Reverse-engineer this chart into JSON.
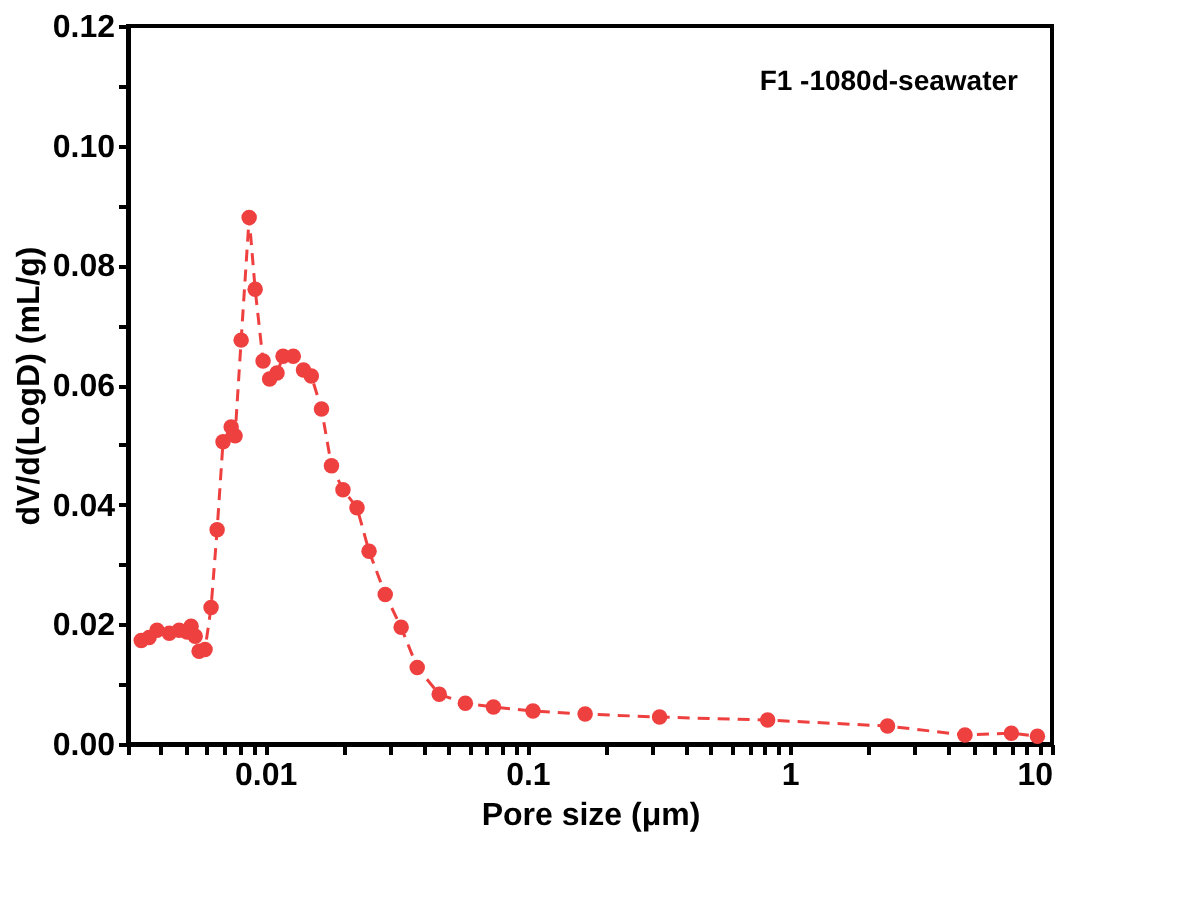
{
  "chart_data": {
    "type": "line",
    "xlabel": "Pore size (μm)",
    "ylabel": "dV/d(LogD) (mL/g)",
    "annotations": [
      "F1 -1080d-seawater"
    ],
    "log": "x",
    "grid": false,
    "marker": "circle",
    "line_style": "dashed",
    "xlim": [
      0.003,
      10
    ],
    "ylim": [
      0,
      0.12
    ],
    "xticks": [
      {
        "value": 0.003,
        "label": null
      },
      {
        "value": 0.004,
        "label": null
      },
      {
        "value": 0.005,
        "label": null
      },
      {
        "value": 0.006,
        "label": null
      },
      {
        "value": 0.007,
        "label": null
      },
      {
        "value": 0.008,
        "label": null
      },
      {
        "value": 0.009,
        "label": null
      },
      0.01,
      {
        "value": 0.02,
        "label": null
      },
      {
        "value": 0.03,
        "label": null
      },
      {
        "value": 0.04,
        "label": null
      },
      {
        "value": 0.05,
        "label": null
      },
      {
        "value": 0.06,
        "label": null
      },
      {
        "value": 0.07,
        "label": null
      },
      {
        "value": 0.08,
        "label": null
      },
      {
        "value": 0.09,
        "label": null
      },
      0.1,
      {
        "value": 0.2,
        "label": null
      },
      {
        "value": 0.3,
        "label": null
      },
      {
        "value": 0.4,
        "label": null
      },
      {
        "value": 0.5,
        "label": null
      },
      {
        "value": 0.6,
        "label": null
      },
      {
        "value": 0.7,
        "label": null
      },
      {
        "value": 0.8,
        "label": null
      },
      {
        "value": 0.9,
        "label": null
      },
      1,
      {
        "value": 2,
        "label": null
      },
      {
        "value": 3,
        "label": null
      },
      {
        "value": 4,
        "label": null
      },
      {
        "value": 5,
        "label": null
      },
      {
        "value": 6,
        "label": null
      },
      {
        "value": 7,
        "label": null
      },
      {
        "value": 8,
        "label": null
      },
      {
        "value": 9,
        "label": null
      },
      10
    ],
    "yticks": [
      {
        "value": 0,
        "label": "0.00"
      },
      {
        "value": 0.01,
        "label": null
      },
      {
        "value": 0.02,
        "label": "0.02"
      },
      {
        "value": 0.03,
        "label": null
      },
      {
        "value": 0.04,
        "label": "0.04"
      },
      {
        "value": 0.05,
        "label": null
      },
      {
        "value": 0.06,
        "label": "0.06"
      },
      {
        "value": 0.07,
        "label": null
      },
      {
        "value": 0.08,
        "label": "0.08"
      },
      {
        "value": 0.09,
        "label": null
      },
      {
        "value": 0.1,
        "label": "0.10"
      },
      {
        "value": 0.11,
        "label": null
      },
      {
        "value": 0.12,
        "label": "0.12"
      }
    ],
    "series": [
      {
        "color": "#ef4040",
        "x": [
          0.00337,
          0.00361,
          0.00387,
          0.00431,
          0.0047,
          0.00504,
          0.00522,
          0.00541,
          0.0056,
          0.0059,
          0.00622,
          0.00656,
          0.00691,
          0.00742,
          0.00768,
          0.0081,
          0.00869,
          0.00916,
          0.00982,
          0.0104,
          0.0111,
          0.0117,
          0.0128,
          0.014,
          0.015,
          0.0164,
          0.0179,
          0.0198,
          0.0224,
          0.0249,
          0.0287,
          0.033,
          0.038,
          0.0461,
          0.058,
          0.0742,
          0.105,
          0.166,
          0.319,
          0.824,
          2.36,
          4.66,
          7.0,
          8.8
        ],
        "values": [
          0.0173,
          0.0178,
          0.019,
          0.0185,
          0.019,
          0.0187,
          0.0197,
          0.018,
          0.0155,
          0.0158,
          0.0228,
          0.0358,
          0.0505,
          0.053,
          0.0515,
          0.0675,
          0.088,
          0.076,
          0.064,
          0.061,
          0.062,
          0.0648,
          0.0648,
          0.0625,
          0.0615,
          0.056,
          0.0465,
          0.0425,
          0.0395,
          0.0322,
          0.025,
          0.0195,
          0.0128,
          0.0083,
          0.0068,
          0.0062,
          0.0055,
          0.005,
          0.0045,
          0.004,
          0.003,
          0.0015,
          0.0018,
          0.0013
        ]
      }
    ]
  }
}
